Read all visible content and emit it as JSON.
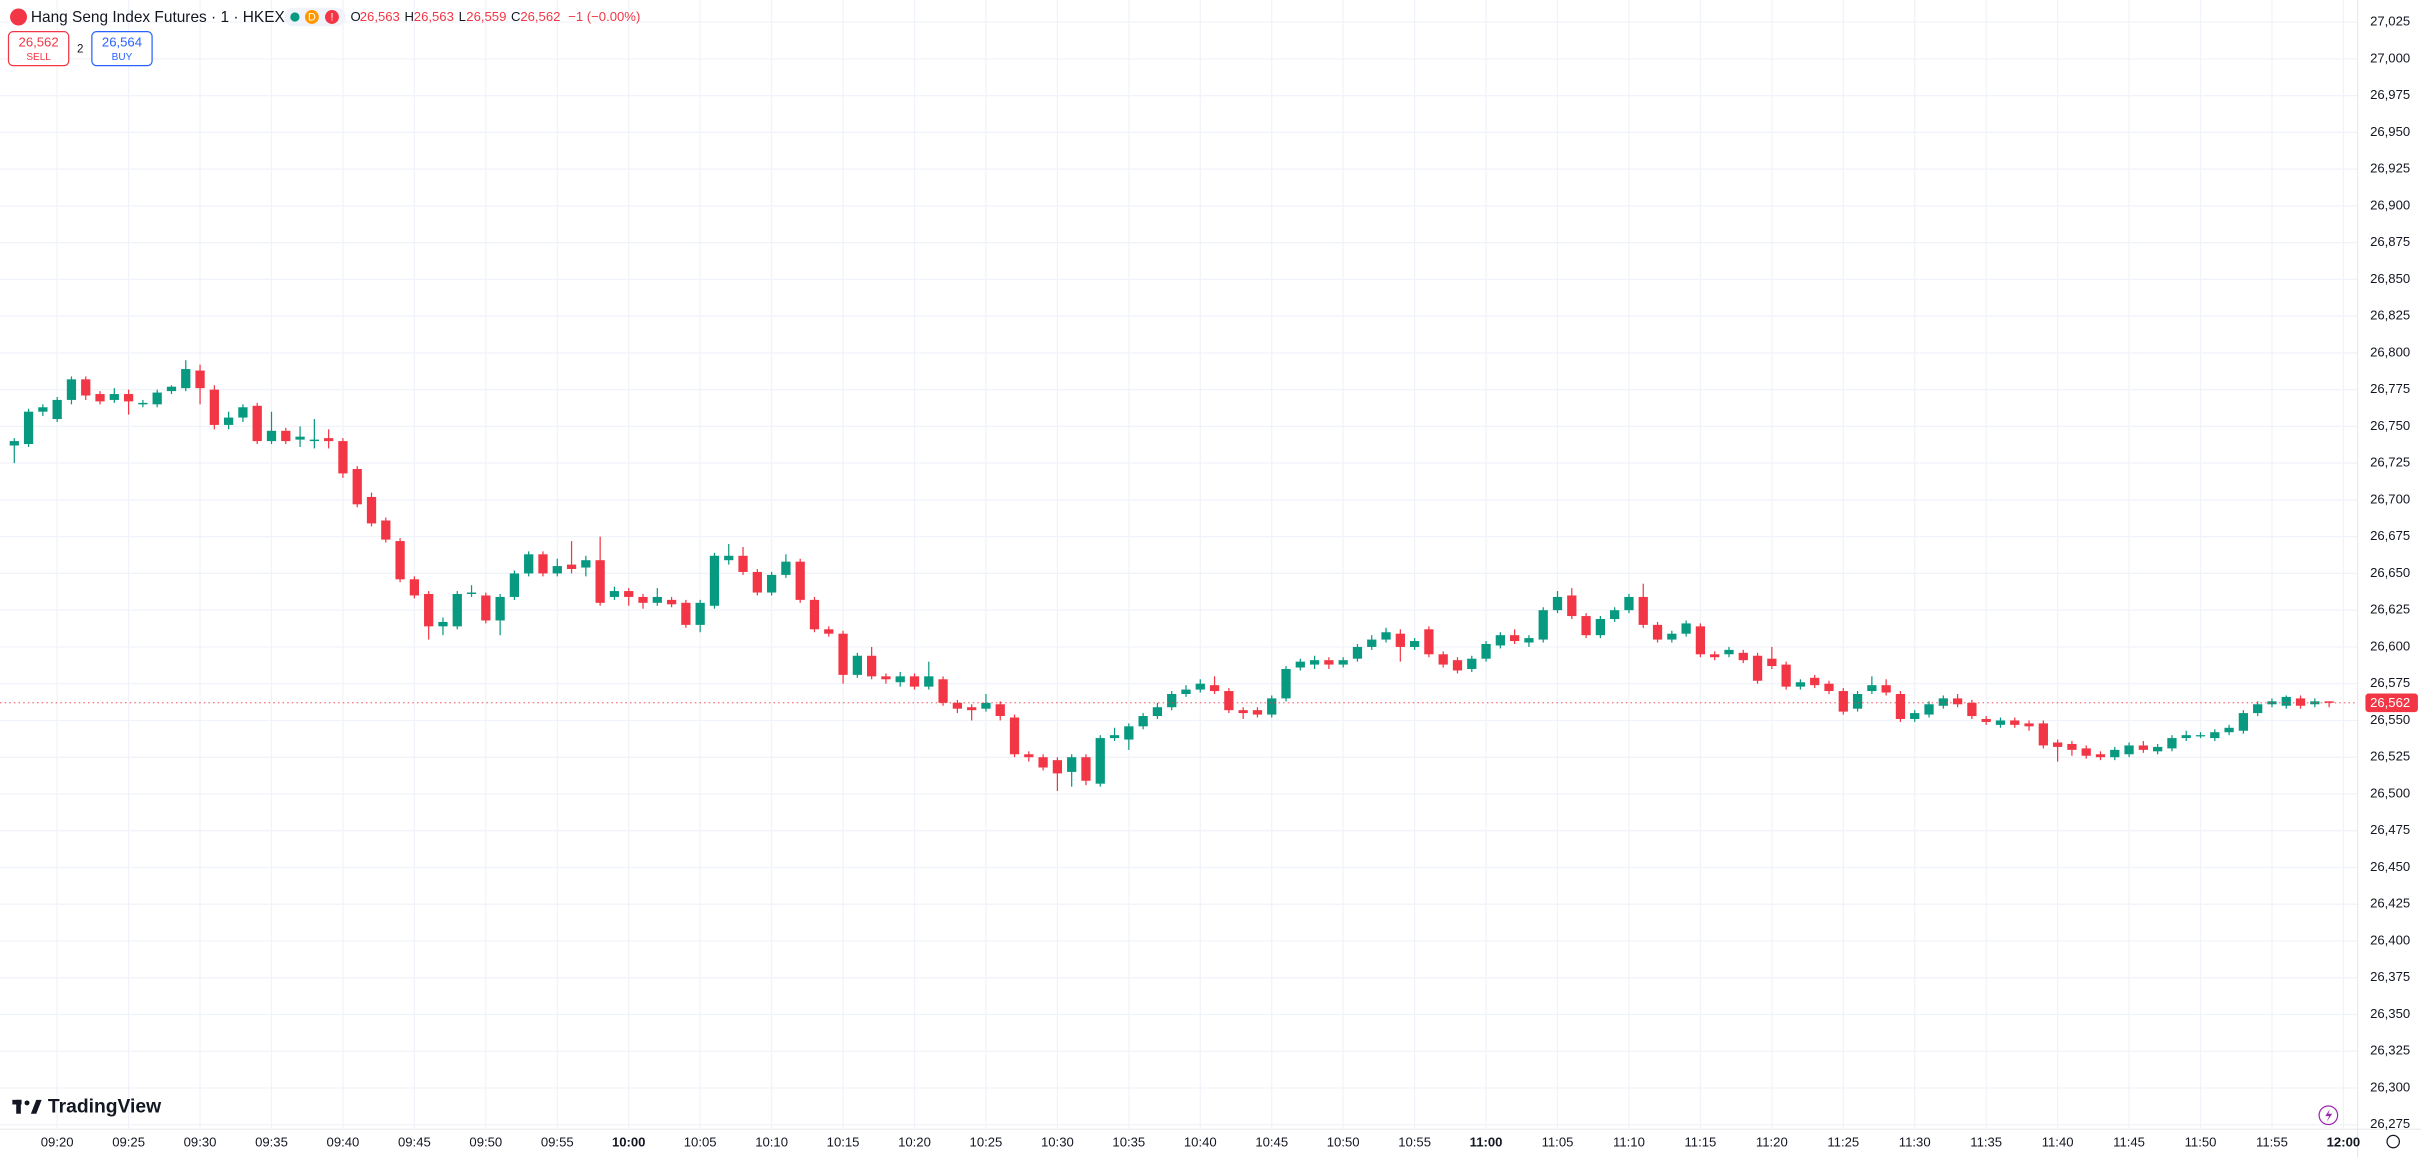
{
  "header": {
    "symbol": "Hang Seng Index Futures · 1 · HKEX",
    "badges": [
      "D",
      "!"
    ],
    "ohlc": [
      {
        "label": "O",
        "value": "26,563"
      },
      {
        "label": "H",
        "value": "26,563"
      },
      {
        "label": "L",
        "value": "26,559"
      },
      {
        "label": "C",
        "value": "26,562"
      }
    ],
    "change": "−1 (−0.00%)"
  },
  "trade": {
    "sell": {
      "price": "26,562",
      "label": "SELL"
    },
    "spread": "2",
    "buy": {
      "price": "26,564",
      "label": "BUY"
    }
  },
  "brand": "TradingView",
  "chart_data": {
    "type": "candlestick",
    "up_color": "#089981",
    "down_color": "#f23645",
    "grid": true,
    "x": [
      "09:17",
      "09:18",
      "09:19",
      "09:20",
      "09:21",
      "09:22",
      "09:23",
      "09:24",
      "09:25",
      "09:26",
      "09:27",
      "09:28",
      "09:29",
      "09:30",
      "09:31",
      "09:32",
      "09:33",
      "09:34",
      "09:35",
      "09:36",
      "09:37",
      "09:38",
      "09:39",
      "09:40",
      "09:41",
      "09:42",
      "09:43",
      "09:44",
      "09:45",
      "09:46",
      "09:47",
      "09:48",
      "09:49",
      "09:50",
      "09:51",
      "09:52",
      "09:53",
      "09:54",
      "09:55",
      "09:56",
      "09:57",
      "09:58",
      "09:59",
      "10:00",
      "10:01",
      "10:02",
      "10:03",
      "10:04",
      "10:05",
      "10:06",
      "10:07",
      "10:08",
      "10:09",
      "10:10",
      "10:11",
      "10:12",
      "10:13",
      "10:14",
      "10:15",
      "10:16",
      "10:17",
      "10:18",
      "10:19",
      "10:20",
      "10:21",
      "10:22",
      "10:23",
      "10:24",
      "10:25",
      "10:26",
      "10:27",
      "10:28",
      "10:29",
      "10:30",
      "10:31",
      "10:32",
      "10:33",
      "10:34",
      "10:35",
      "10:36",
      "10:37",
      "10:38",
      "10:39",
      "10:40",
      "10:41",
      "10:42",
      "10:43",
      "10:44",
      "10:45",
      "10:46",
      "10:47",
      "10:48",
      "10:49",
      "10:50",
      "10:51",
      "10:52",
      "10:53",
      "10:54",
      "10:55",
      "10:56",
      "10:57",
      "10:58",
      "10:59",
      "11:00",
      "11:01",
      "11:02",
      "11:03",
      "11:04",
      "11:05",
      "11:06",
      "11:07",
      "11:08",
      "11:09",
      "11:10",
      "11:11",
      "11:12",
      "11:13",
      "11:14",
      "11:15",
      "11:16",
      "11:17",
      "11:18",
      "11:19",
      "11:20",
      "11:21",
      "11:22",
      "11:23",
      "11:24",
      "11:25",
      "11:26",
      "11:27",
      "11:28",
      "11:29",
      "11:30",
      "11:31",
      "11:32",
      "11:33",
      "11:34",
      "11:35",
      "11:36",
      "11:37",
      "11:38",
      "11:39",
      "11:40",
      "11:41",
      "11:42",
      "11:43",
      "11:44",
      "11:45",
      "11:46",
      "11:47",
      "11:48",
      "11:49",
      "11:50",
      "11:51",
      "11:52",
      "11:53",
      "11:54",
      "11:55",
      "11:56",
      "11:57",
      "11:58",
      "11:59"
    ],
    "open": [
      26737,
      26738,
      26760,
      26755,
      26768,
      26782,
      26772,
      26768,
      26772,
      26765,
      26765,
      26774,
      26776,
      26788,
      26775,
      26751,
      26756,
      26764,
      26740,
      26747,
      26741,
      26740,
      26742,
      26740,
      26721,
      26702,
      26686,
      26672,
      26646,
      26636,
      26614,
      26614,
      26636,
      26635,
      26618,
      26634,
      26650,
      26663,
      26650,
      26656,
      26654,
      26659,
      26634,
      26638,
      26634,
      26630,
      26632,
      26630,
      26615,
      26628,
      26659,
      26662,
      26651,
      26637,
      26649,
      26658,
      26632,
      26612,
      26609,
      26581,
      26594,
      26580,
      26576,
      26580,
      26573,
      26578,
      26562,
      26559,
      26558,
      26561,
      26552,
      26527,
      26525,
      26523,
      26515,
      26525,
      26507,
      26538,
      26537,
      26546,
      26553,
      26559,
      26568,
      26571,
      26574,
      26570,
      26557,
      26557,
      26554,
      26565,
      26586,
      26588,
      26591,
      26588,
      26592,
      26600,
      26605,
      26609,
      26600,
      26612,
      26595,
      26591,
      26585,
      26592,
      26601,
      26608,
      26603,
      26605,
      26625,
      26635,
      26621,
      26608,
      26619,
      26625,
      26634,
      26615,
      26605,
      26609,
      26614,
      26595,
      26595,
      26596,
      26594,
      26592,
      26588,
      26573,
      26579,
      26575,
      26570,
      26558,
      26570,
      26574,
      26568,
      26551,
      26554,
      26560,
      26565,
      26562,
      26551,
      26547,
      26550,
      26548,
      26548,
      26535,
      26534,
      26531,
      26527,
      26525,
      26527,
      26533,
      26529,
      26531,
      26538,
      26540,
      26538,
      26542,
      26543,
      26555,
      26561,
      26560,
      26565,
      26561,
      26563
    ],
    "high": [
      26742,
      26762,
      26765,
      26770,
      26784,
      26784,
      26774,
      26776,
      26775,
      26768,
      26775,
      26778,
      26795,
      26792,
      26778,
      26760,
      26765,
      26766,
      26760,
      26749,
      26750,
      26755,
      26748,
      26742,
      26723,
      26705,
      26688,
      26674,
      26648,
      26638,
      26620,
      26638,
      26642,
      26637,
      26636,
      26652,
      26665,
      26665,
      26660,
      26672,
      26662,
      26675,
      26641,
      26640,
      26636,
      26640,
      26634,
      26632,
      26632,
      26664,
      26670,
      26668,
      26653,
      26651,
      26663,
      26660,
      26634,
      26614,
      26611,
      26596,
      26600,
      26582,
      26583,
      26582,
      26590,
      26580,
      26564,
      26561,
      26568,
      26563,
      26554,
      26529,
      26527,
      26525,
      26527,
      26527,
      26540,
      26545,
      26548,
      26555,
      26562,
      26570,
      26574,
      26578,
      26580,
      26572,
      26559,
      26559,
      26567,
      26587,
      26592,
      26594,
      26593,
      26593,
      26602,
      26608,
      26613,
      26612,
      26606,
      26614,
      26597,
      26593,
      26594,
      26604,
      26610,
      26612,
      26608,
      26627,
      26638,
      26640,
      26623,
      26621,
      26627,
      26636,
      26643,
      26617,
      26611,
      26618,
      26616,
      26597,
      26600,
      26598,
      26596,
      26600,
      26590,
      26578,
      26581,
      26577,
      26572,
      26570,
      26580,
      26578,
      26570,
      26557,
      26563,
      26567,
      26568,
      26564,
      26553,
      26552,
      26552,
      26550,
      26550,
      26537,
      26536,
      26533,
      26529,
      26532,
      26535,
      26536,
      26534,
      26540,
      26543,
      26542,
      26544,
      26547,
      26557,
      26563,
      26565,
      26567,
      26567,
      26565,
      26563
    ],
    "low": [
      26725,
      26736,
      26757,
      26753,
      26765,
      26768,
      26765,
      26766,
      26758,
      26763,
      26763,
      26772,
      26774,
      26765,
      26748,
      26748,
      26753,
      26738,
      26738,
      26738,
      26736,
      26735,
      26735,
      26715,
      26695,
      26682,
      26671,
      26644,
      26633,
      26605,
      26608,
      26612,
      26634,
      26616,
      26608,
      26632,
      26648,
      26648,
      26648,
      26650,
      26648,
      26628,
      26632,
      26628,
      26626,
      26628,
      26627,
      26613,
      26610,
      26626,
      26656,
      26649,
      26635,
      26635,
      26647,
      26630,
      26610,
      26607,
      26575,
      26579,
      26578,
      26575,
      26573,
      26571,
      26571,
      26560,
      26555,
      26550,
      26556,
      26550,
      26525,
      26522,
      26516,
      26502,
      26505,
      26506,
      26505,
      26536,
      26530,
      26544,
      26551,
      26557,
      26566,
      26569,
      26568,
      26555,
      26551,
      26552,
      26552,
      26563,
      26584,
      26585,
      26585,
      26586,
      26590,
      26598,
      26603,
      26590,
      26598,
      26593,
      26586,
      26582,
      26583,
      26590,
      26599,
      26602,
      26600,
      26603,
      26623,
      26619,
      26606,
      26606,
      26617,
      26623,
      26613,
      26603,
      26603,
      26607,
      26593,
      26591,
      26593,
      26589,
      26575,
      26585,
      26571,
      26571,
      26572,
      26568,
      26554,
      26556,
      26568,
      26567,
      26549,
      26549,
      26552,
      26558,
      26559,
      26551,
      26547,
      26545,
      26545,
      26543,
      26531,
      26522,
      26526,
      26524,
      26523,
      26523,
      26525,
      26528,
      26527,
      26529,
      26536,
      26538,
      26536,
      26540,
      26541,
      26553,
      26559,
      26558,
      26558,
      26559,
      26559
    ],
    "close": [
      26740,
      26760,
      26763,
      26768,
      26782,
      26771,
      26767,
      26772,
      26767,
      26766,
      26773,
      26777,
      26789,
      26776,
      26751,
      26756,
      26763,
      26740,
      26747,
      26740,
      26743,
      26741,
      26740,
      26718,
      26697,
      26684,
      26673,
      26646,
      26635,
      26614,
      26617,
      26636,
      26637,
      26618,
      26634,
      26650,
      26663,
      26650,
      26655,
      26653,
      26659,
      26630,
      26638,
      26634,
      26630,
      26634,
      26629,
      26615,
      26630,
      26662,
      26662,
      26651,
      26637,
      26649,
      26658,
      26632,
      26612,
      26609,
      26581,
      26594,
      26580,
      26578,
      26580,
      26573,
      26580,
      26562,
      26558,
      26557,
      26562,
      26553,
      26527,
      26525,
      26518,
      26514,
      26525,
      26509,
      26538,
      26540,
      26546,
      26553,
      26559,
      26568,
      26571,
      26575,
      26570,
      26557,
      26555,
      26554,
      26565,
      26585,
      26590,
      26591,
      26588,
      26591,
      26600,
      26605,
      26610,
      26600,
      26604,
      26595,
      26588,
      26584,
      26592,
      26602,
      26608,
      26604,
      26606,
      26625,
      26634,
      26621,
      26608,
      26619,
      26625,
      26634,
      26615,
      26605,
      26609,
      26616,
      26595,
      26593,
      26598,
      26591,
      26577,
      26587,
      26573,
      26576,
      26574,
      26570,
      26556,
      26568,
      26574,
      26569,
      26551,
      26555,
      26561,
      26565,
      26561,
      26553,
      26549,
      26550,
      26547,
      26546,
      26533,
      26532,
      26530,
      26526,
      26525,
      26530,
      26533,
      26530,
      26532,
      26538,
      26540,
      26540,
      26542,
      26545,
      26555,
      26561,
      26563,
      26566,
      26560,
      26563,
      26562
    ],
    "xlim": [
      "09:16",
      "12:01"
    ],
    "xticks": [
      "09:20",
      "09:25",
      "09:30",
      "09:35",
      "09:40",
      "09:45",
      "09:50",
      "09:55",
      "10:00",
      "10:05",
      "10:10",
      "10:15",
      "10:20",
      "10:25",
      "10:30",
      "10:35",
      "10:40",
      "10:45",
      "10:50",
      "10:55",
      "11:00",
      "11:05",
      "11:10",
      "11:15",
      "11:20",
      "11:25",
      "11:30",
      "11:35",
      "11:40",
      "11:45",
      "11:50",
      "11:55",
      "12:00"
    ],
    "ylim": [
      26272,
      27040
    ],
    "yticks": [
      {
        "value": 26275,
        "label": "26,275"
      },
      {
        "value": 26300,
        "label": "26,300"
      },
      {
        "value": 26325,
        "label": "26,325"
      },
      {
        "value": 26350,
        "label": "26,350"
      },
      {
        "value": 26375,
        "label": "26,375"
      },
      {
        "value": 26400,
        "label": "26,400"
      },
      {
        "value": 26425,
        "label": "26,425"
      },
      {
        "value": 26450,
        "label": "26,450"
      },
      {
        "value": 26475,
        "label": "26,475"
      },
      {
        "value": 26500,
        "label": "26,500"
      },
      {
        "value": 26525,
        "label": "26,525"
      },
      {
        "value": 26550,
        "label": "26,550"
      },
      {
        "value": 26575,
        "label": "26,575"
      },
      {
        "value": 26600,
        "label": "26,600"
      },
      {
        "value": 26625,
        "label": "26,625"
      },
      {
        "value": 26650,
        "label": "26,650"
      },
      {
        "value": 26675,
        "label": "26,675"
      },
      {
        "value": 26700,
        "label": "26,700"
      },
      {
        "value": 26725,
        "label": "26,725"
      },
      {
        "value": 26750,
        "label": "26,750"
      },
      {
        "value": 26775,
        "label": "26,775"
      },
      {
        "value": 26800,
        "label": "26,800"
      },
      {
        "value": 26825,
        "label": "26,825"
      },
      {
        "value": 26850,
        "label": "26,850"
      },
      {
        "value": 26875,
        "label": "26,875"
      },
      {
        "value": 26900,
        "label": "26,900"
      },
      {
        "value": 26925,
        "label": "26,925"
      },
      {
        "value": 26950,
        "label": "26,950"
      },
      {
        "value": 26975,
        "label": "26,975"
      },
      {
        "value": 27000,
        "label": "27,000"
      },
      {
        "value": 27025,
        "label": "27,025"
      }
    ],
    "last_price": {
      "value": 26562,
      "label": "26,562"
    }
  }
}
